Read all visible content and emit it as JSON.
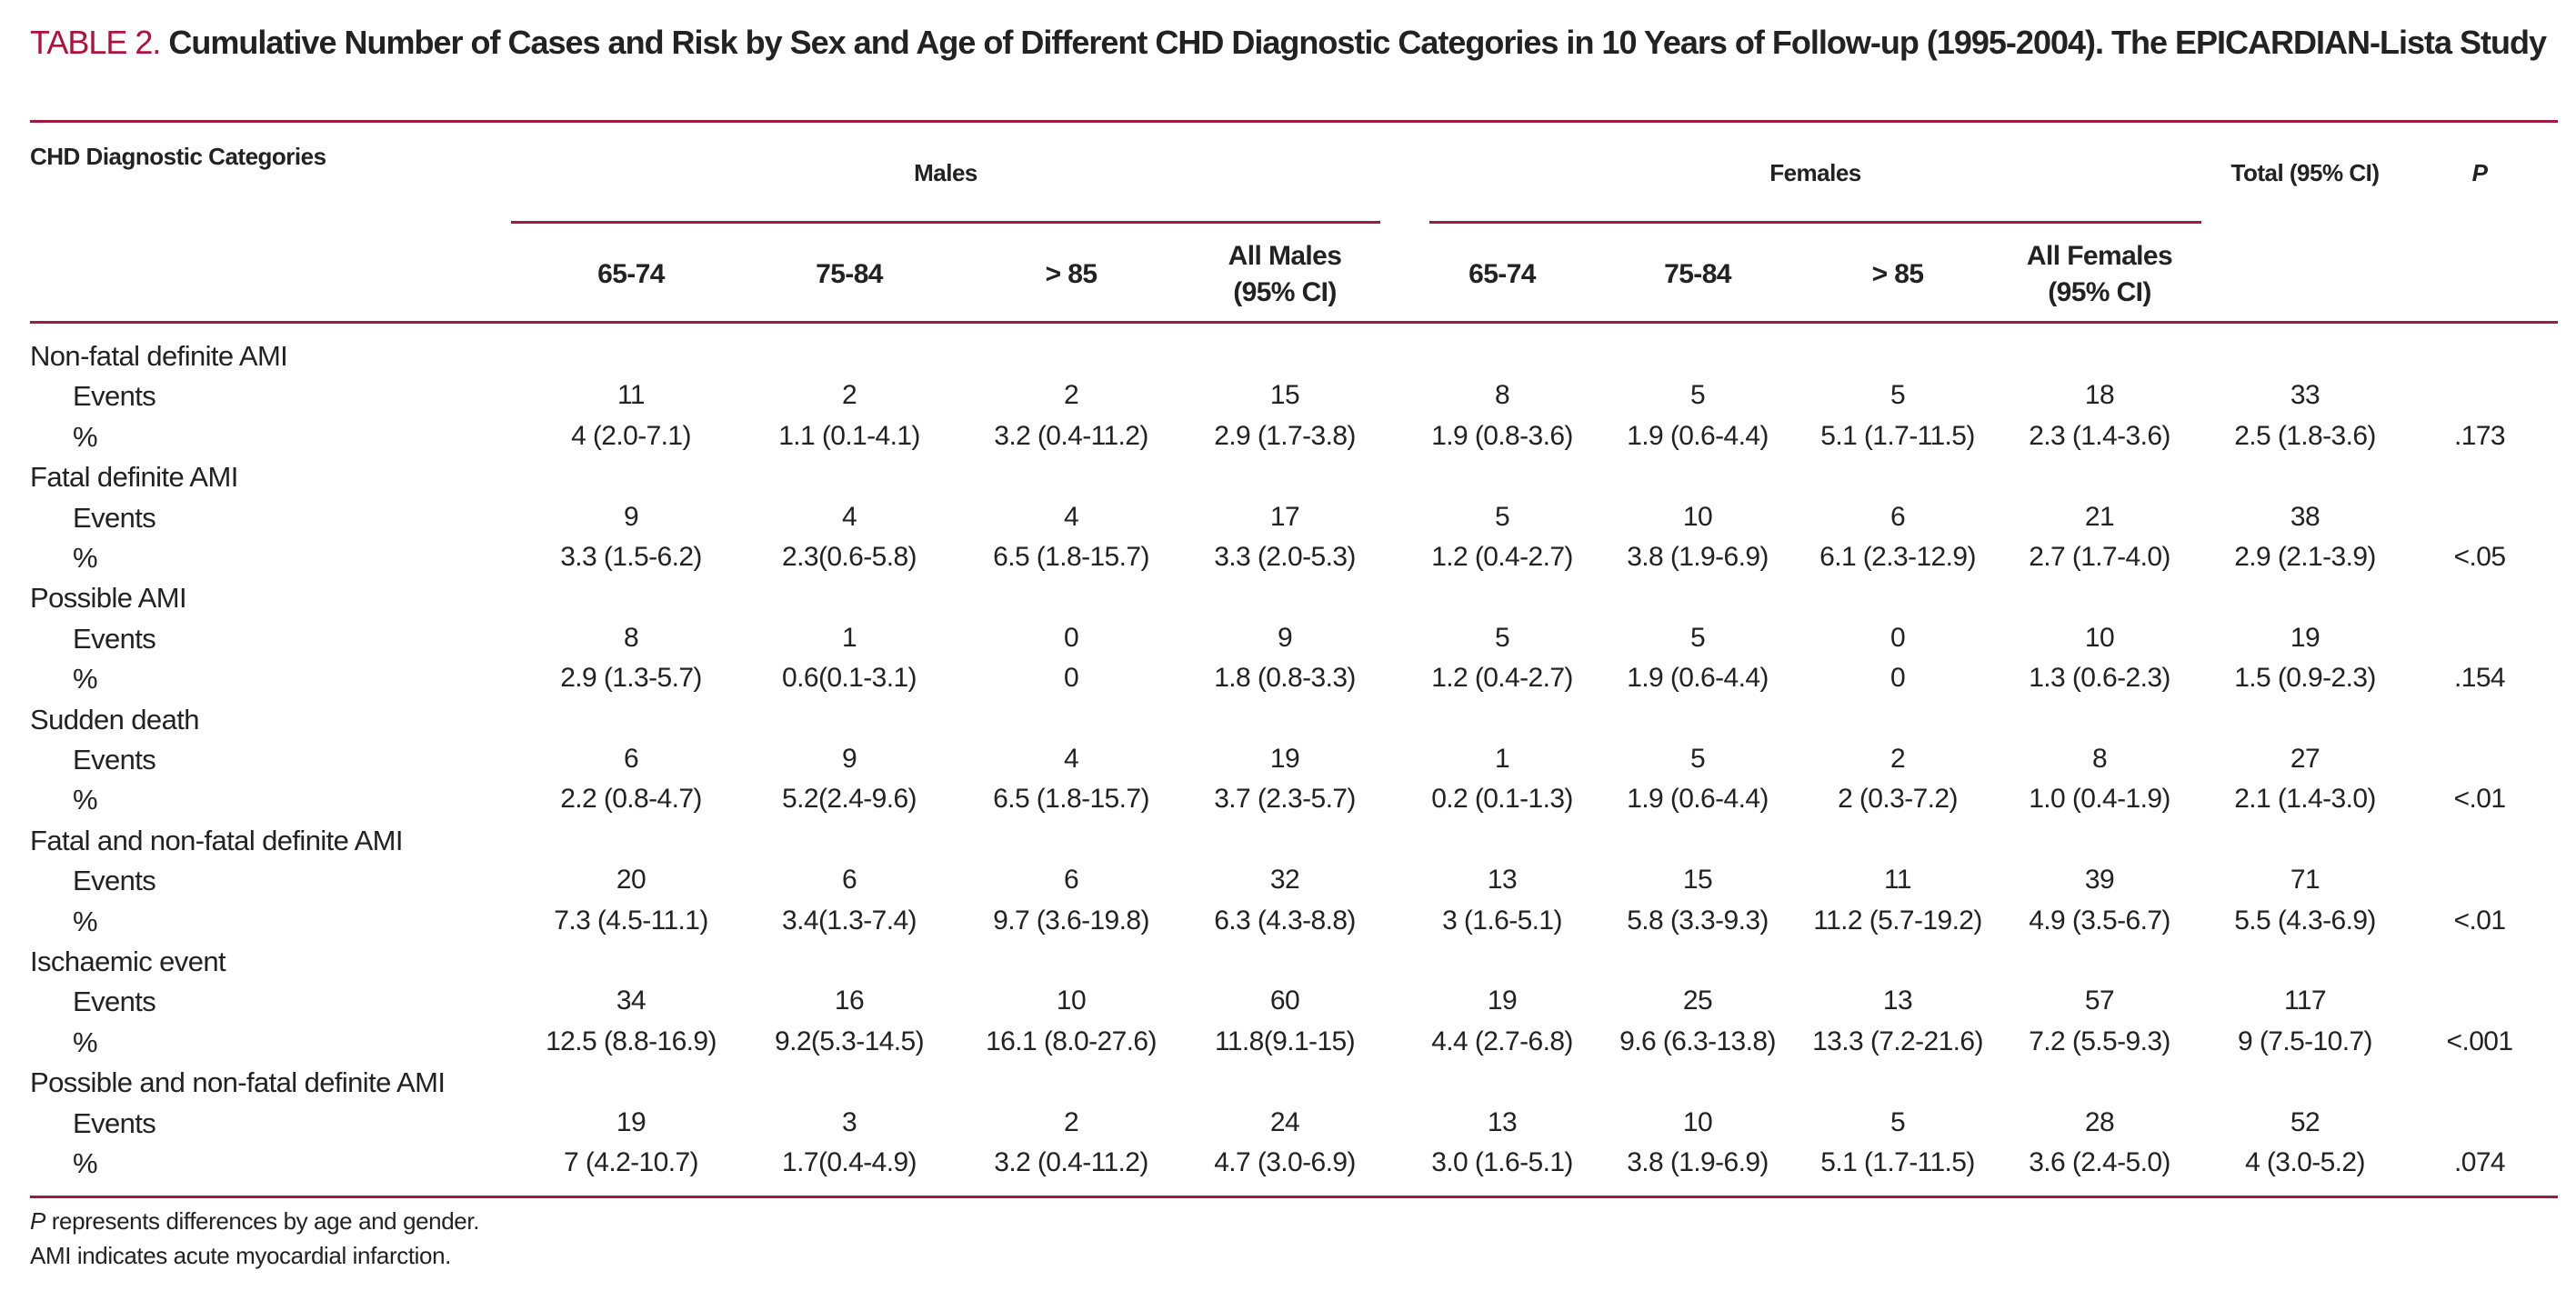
{
  "title": {
    "label": "TABLE 2.",
    "text": "Cumulative Number of Cases and Risk by Sex and Age of Different CHD Diagnostic Categories in 10 Years of Follow-up (1995-2004). The EPICARDIAN-Lista Study"
  },
  "colors": {
    "accent": "#b0103a",
    "rule": "#9e1c3f"
  },
  "header": {
    "category": "CHD Diagnostic Categories",
    "males": "Males",
    "females": "Females",
    "total": "Total (95% CI)",
    "p": "P",
    "columns": [
      "65-74",
      "75-84",
      "> 85",
      "All Males",
      "65-74",
      "75-84",
      "> 85",
      "All Females"
    ],
    "columns_sub": [
      "",
      "",
      "",
      "(95% CI)",
      "",
      "",
      "",
      "(95% CI)"
    ]
  },
  "rows": [
    {
      "category": "Non-fatal definite AMI",
      "events": {
        "label": "Events",
        "values": [
          "11",
          "2",
          "2",
          "15",
          "8",
          "5",
          "5",
          "18",
          "33",
          ""
        ]
      },
      "percent": {
        "label": "%",
        "values": [
          "4 (2.0-7.1)",
          "1.1 (0.1-4.1)",
          "3.2 (0.4-11.2)",
          "2.9  (1.7-3.8)",
          "1.9 (0.8-3.6)",
          "1.9 (0.6-4.4)",
          "5.1 (1.7-11.5)",
          "2.3  (1.4-3.6)",
          "2.5 (1.8-3.6)",
          ".173"
        ]
      }
    },
    {
      "category": "Fatal definite AMI",
      "events": {
        "label": "Events",
        "values": [
          "9",
          "4",
          "4",
          "17",
          "5",
          "10",
          "6",
          "21",
          "38",
          ""
        ]
      },
      "percent": {
        "label": "%",
        "values": [
          "3.3 (1.5-6.2)",
          "2.3(0.6-5.8)",
          "6.5 (1.8-15.7)",
          "3.3  (2.0-5.3)",
          "1.2 (0.4-2.7)",
          "3.8 (1.9-6.9)",
          "6.1 (2.3-12.9)",
          "2.7 (1.7-4.0)",
          "2.9 (2.1-3.9)",
          "<.05"
        ]
      }
    },
    {
      "category": "Possible AMI",
      "events": {
        "label": "Events",
        "values": [
          "8",
          "1",
          "0",
          "9",
          "5",
          "5",
          "0",
          "10",
          "19",
          ""
        ]
      },
      "percent": {
        "label": "%",
        "values": [
          "2.9 (1.3-5.7)",
          "0.6(0.1-3.1)",
          "0",
          "1.8 (0.8-3.3)",
          "1.2 (0.4-2.7)",
          "1.9 (0.6-4.4)",
          "0",
          "1.3 (0.6-2.3)",
          "1.5 (0.9-2.3)",
          ".154"
        ]
      }
    },
    {
      "category": "Sudden death",
      "events": {
        "label": "Events",
        "values": [
          "6",
          "9",
          "4",
          "19",
          "1",
          "5",
          "2",
          "8",
          "27",
          ""
        ]
      },
      "percent": {
        "label": "%",
        "values": [
          "2.2 (0.8-4.7)",
          "5.2(2.4-9.6)",
          "6.5 (1.8-15.7)",
          "3.7 (2.3-5.7)",
          "0.2 (0.1-1.3)",
          "1.9 (0.6-4.4)",
          "2 (0.3-7.2)",
          "1.0 (0.4-1.9)",
          "2.1 (1.4-3.0)",
          "<.01"
        ]
      }
    },
    {
      "category": "Fatal and non-fatal definite AMI",
      "events": {
        "label": "Events",
        "values": [
          "20",
          "6",
          "6",
          "32",
          "13",
          "15",
          "11",
          "39",
          "71",
          ""
        ]
      },
      "percent": {
        "label": "%",
        "values": [
          "7.3 (4.5-11.1)",
          "3.4(1.3-7.4)",
          "9.7 (3.6-19.8)",
          "6.3 (4.3-8.8)",
          "3 (1.6-5.1)",
          "5.8 (3.3-9.3)",
          "11.2 (5.7-19.2)",
          "4.9 (3.5-6.7)",
          "5.5 (4.3-6.9)",
          "<.01"
        ]
      }
    },
    {
      "category": "Ischaemic event",
      "events": {
        "label": "Events",
        "values": [
          "34",
          "16",
          "10",
          "60",
          "19",
          "25",
          "13",
          "57",
          "117",
          ""
        ]
      },
      "percent": {
        "label": "%",
        "values": [
          "12.5 (8.8-16.9)",
          "9.2(5.3-14.5)",
          "16.1 (8.0-27.6)",
          "11.8(9.1-15)",
          "4.4 (2.7-6.8)",
          "9.6 (6.3-13.8)",
          "13.3 (7.2-21.6)",
          "7.2 (5.5-9.3)",
          "9 (7.5-10.7)",
          "<.001"
        ]
      }
    },
    {
      "category": "Possible and non-fatal definite AMI",
      "events": {
        "label": "Events",
        "values": [
          "19",
          "3",
          "2",
          "24",
          "13",
          "10",
          "5",
          "28",
          "52",
          ""
        ]
      },
      "percent": {
        "label": "%",
        "values": [
          "7 (4.2-10.7)",
          "1.7(0.4-4.9)",
          "3.2 (0.4-11.2)",
          "4.7 (3.0-6.9)",
          "3.0 (1.6-5.1)",
          "3.8 (1.9-6.9)",
          "5.1 (1.7-11.5)",
          "3.6 (2.4-5.0)",
          "4 (3.0-5.2)",
          ".074"
        ]
      }
    }
  ],
  "footnotes": [
    {
      "italic": "P",
      "text": " represents differences by age and gender."
    },
    {
      "italic": "",
      "text": "AMI indicates acute myocardial infarction."
    }
  ]
}
